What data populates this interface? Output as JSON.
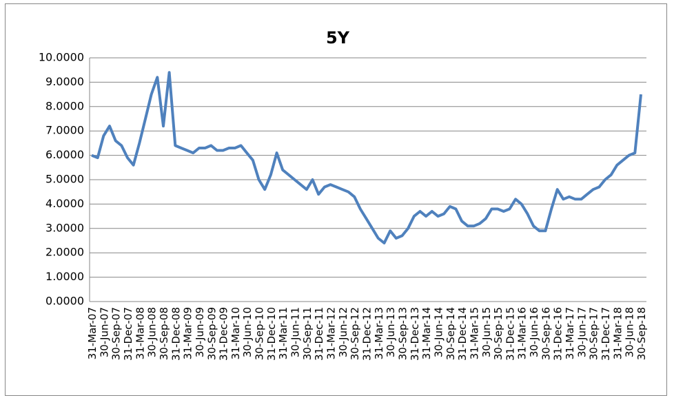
{
  "chart_data": {
    "type": "line",
    "title": "5Y",
    "categories": [
      "31-Mar-07",
      null,
      "30-Jun-07",
      null,
      "30-Sep-07",
      null,
      "31-Dec-07",
      null,
      "31-Mar-08",
      null,
      "30-Jun-08",
      null,
      "30-Sep-08",
      null,
      "31-Dec-08",
      null,
      "31-Mar-09",
      null,
      "30-Jun-09",
      null,
      "30-Sep-09",
      null,
      "31-Dec-09",
      null,
      "31-Mar-10",
      null,
      "30-Jun-10",
      null,
      "30-Sep-10",
      null,
      "31-Dec-10",
      null,
      "31-Mar-11",
      null,
      "30-Jun-11",
      null,
      "30-Sep-11",
      null,
      "31-Dec-11",
      null,
      "31-Mar-12",
      null,
      "30-Jun-12",
      null,
      "30-Sep-12",
      null,
      "31-Dec-12",
      null,
      "31-Mar-13",
      null,
      "30-Jun-13",
      null,
      "30-Sep-13",
      null,
      "31-Dec-13",
      null,
      "31-Mar-14",
      null,
      "30-Jun-14",
      null,
      "30-Sep-14",
      null,
      "31-Dec-14",
      null,
      "31-Mar-15",
      null,
      "30-Jun-15",
      null,
      "30-Sep-15",
      null,
      "31-Dec-15",
      null,
      "31-Mar-16",
      null,
      "30-Jun-16",
      null,
      "30-Sep-16",
      null,
      "31-Dec-16",
      null,
      "31-Mar-17",
      null,
      "30-Jun-17",
      null,
      "30-Sep-17",
      null,
      "31-Dec-17",
      null,
      "31-Mar-18",
      null,
      "30-Jun-18",
      null,
      "30-Sep-18"
    ],
    "series": [
      {
        "name": "5Y",
        "color": "#4f81bd",
        "values": [
          6.0,
          5.9,
          6.8,
          7.2,
          6.6,
          6.4,
          5.9,
          5.6,
          6.5,
          7.5,
          8.5,
          9.2,
          7.2,
          9.4,
          6.4,
          6.3,
          6.2,
          6.1,
          6.3,
          6.3,
          6.4,
          6.2,
          6.2,
          6.3,
          6.3,
          6.4,
          6.1,
          5.8,
          5.0,
          4.6,
          5.2,
          6.1,
          5.4,
          5.2,
          5.0,
          4.8,
          4.6,
          5.0,
          4.4,
          4.7,
          4.8,
          4.7,
          4.6,
          4.5,
          4.3,
          3.8,
          3.4,
          3.0,
          2.6,
          2.4,
          2.9,
          2.6,
          2.7,
          3.0,
          3.5,
          3.7,
          3.5,
          3.7,
          3.5,
          3.6,
          3.9,
          3.8,
          3.3,
          3.1,
          3.1,
          3.2,
          3.4,
          3.8,
          3.8,
          3.7,
          3.8,
          4.2,
          4.0,
          3.6,
          3.1,
          2.9,
          2.9,
          3.8,
          4.6,
          4.2,
          4.3,
          4.2,
          4.2,
          4.4,
          4.6,
          4.7,
          5.0,
          5.2,
          5.6,
          5.8,
          6.0,
          6.1,
          8.5
        ]
      }
    ],
    "ylim": [
      0,
      10
    ],
    "yticks": [
      {
        "value": 0,
        "label": "0.0000"
      },
      {
        "value": 1,
        "label": "1.0000"
      },
      {
        "value": 2,
        "label": "2.0000"
      },
      {
        "value": 3,
        "label": "3.0000"
      },
      {
        "value": 4,
        "label": "4.0000"
      },
      {
        "value": 5,
        "label": "5.0000"
      },
      {
        "value": 6,
        "label": "6.0000"
      },
      {
        "value": 7,
        "label": "7.0000"
      },
      {
        "value": 8,
        "label": "8.0000"
      },
      {
        "value": 9,
        "label": "9.0000"
      },
      {
        "value": 10,
        "label": "10.0000"
      }
    ],
    "grid": true
  }
}
